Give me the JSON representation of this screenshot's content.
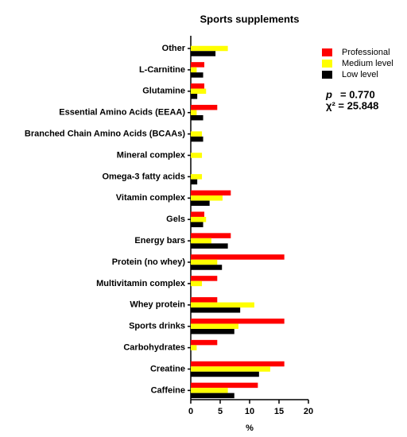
{
  "chart_data": {
    "type": "bar",
    "orientation": "horizontal",
    "title": "Sports supplements",
    "x_label": "%",
    "categories": [
      "Other",
      "L-Carnitine",
      "Glutamine",
      "Essential Amino Acids (EEAA)",
      "Branched Chain Amino Acids (BCAAs)",
      "Mineral complex",
      "Omega-3 fatty acids",
      "Vitamin complex",
      "Gels",
      "Energy bars",
      "Protein (no whey)",
      "Multivitamin complex",
      "Whey protein",
      "Sports drinks",
      "Carbohydrates",
      "Creatine",
      "Caffeine"
    ],
    "series": [
      {
        "name": "Professional",
        "color": "#ff0000",
        "values": [
          0,
          2.3,
          2.3,
          4.5,
          0,
          0,
          0,
          6.8,
          2.3,
          6.8,
          15.9,
          4.5,
          4.5,
          15.9,
          4.5,
          15.9,
          11.4
        ]
      },
      {
        "name": "Medium level",
        "color": "#ffff00",
        "values": [
          6.3,
          1,
          2.6,
          1,
          1.9,
          1.9,
          1.9,
          5.4,
          2.6,
          3.5,
          4.5,
          1.9,
          10.8,
          8.1,
          1,
          13.5,
          6.3
        ]
      },
      {
        "name": "Low level",
        "color": "#000000",
        "values": [
          4.2,
          2.1,
          1.1,
          2.1,
          2.1,
          0,
          1.1,
          3.2,
          2.1,
          6.3,
          5.3,
          0,
          8.4,
          7.4,
          0,
          11.6,
          7.4
        ]
      }
    ],
    "xlim": [
      0,
      20
    ],
    "xticks": [
      0,
      5,
      10,
      15,
      20
    ],
    "annotations": [
      "p",
      "= 0.770",
      "χ² = 25.848"
    ]
  }
}
